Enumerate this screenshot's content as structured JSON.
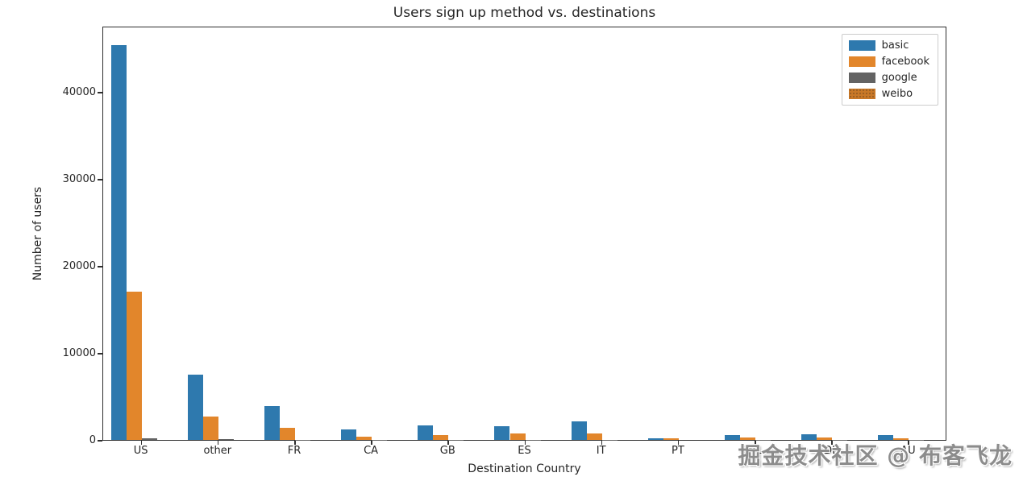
{
  "watermark": {
    "text": "掘金技术社区 @ 布客飞龙"
  },
  "chart_data": {
    "type": "bar",
    "title": "Users sign up method vs. destinations",
    "xlabel": "Destination Country",
    "ylabel": "Number of users",
    "categories": [
      "US",
      "other",
      "FR",
      "CA",
      "GB",
      "ES",
      "IT",
      "PT",
      "NL",
      "DE",
      "AU"
    ],
    "series": [
      {
        "name": "basic",
        "color": "#2E79AE",
        "values": [
          45400,
          7500,
          3900,
          1200,
          1700,
          1550,
          2150,
          190,
          560,
          680,
          550
        ]
      },
      {
        "name": "facebook",
        "color": "#E2862B",
        "values": [
          17000,
          2700,
          1350,
          380,
          560,
          700,
          700,
          150,
          280,
          300,
          160
        ]
      },
      {
        "name": "google",
        "color": "#636363",
        "values": [
          200,
          60,
          30,
          10,
          10,
          10,
          10,
          0,
          5,
          10,
          5
        ]
      },
      {
        "name": "weibo",
        "color": "#C87828",
        "pattern": "dots",
        "values": [
          0,
          0,
          0,
          0,
          0,
          0,
          0,
          0,
          0,
          0,
          0
        ]
      }
    ],
    "yticks": [
      0,
      10000,
      20000,
      30000,
      40000
    ],
    "ylim": [
      0,
      47600
    ],
    "legend_position": "upper right",
    "grid": false
  }
}
